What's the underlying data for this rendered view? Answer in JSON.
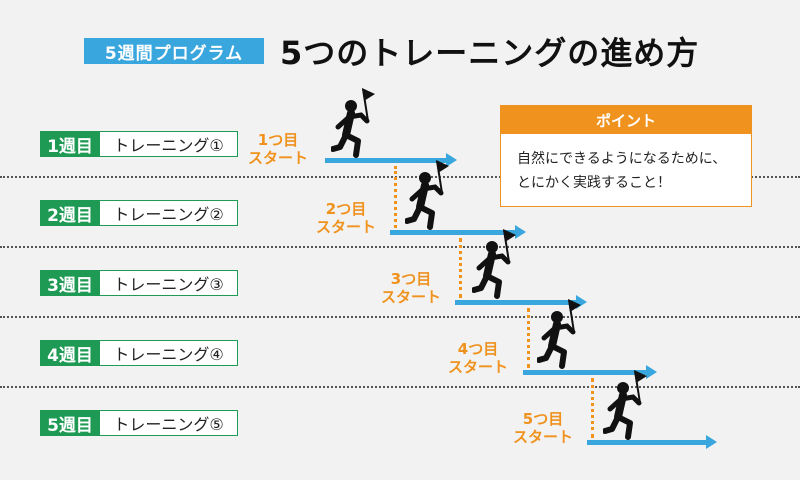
{
  "header": {
    "badge": "5週間プログラム",
    "title": "5つのトレーニングの進め方"
  },
  "weeks": [
    {
      "num": "1週目",
      "name": "トレーニング①",
      "start": "1つ目\nスタート"
    },
    {
      "num": "2週目",
      "name": "トレーニング②",
      "start": "2つ目\nスタート"
    },
    {
      "num": "3週目",
      "name": "トレーニング③",
      "start": "3つ目\nスタート"
    },
    {
      "num": "4週目",
      "name": "トレーニング④",
      "start": "4つ目\nスタート"
    },
    {
      "num": "5週目",
      "name": "トレーニング⑤",
      "start": "5つ目\nスタート"
    }
  ],
  "point": {
    "heading": "ポイント",
    "body": "自然にできるようになるために、\nとにかく実践すること！"
  },
  "colors": {
    "green": "#1f9a54",
    "blue": "#3aa6de",
    "orange": "#f0921e"
  },
  "icons": {
    "runner": "runner-with-flag-icon",
    "arrow": "arrow-right-icon"
  }
}
